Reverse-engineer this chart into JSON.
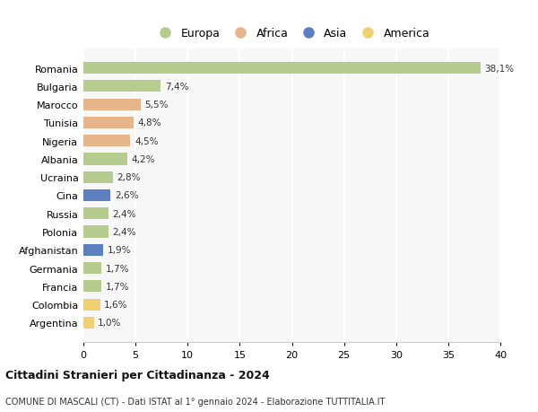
{
  "countries": [
    "Romania",
    "Bulgaria",
    "Marocco",
    "Tunisia",
    "Nigeria",
    "Albania",
    "Ucraina",
    "Cina",
    "Russia",
    "Polonia",
    "Afghanistan",
    "Germania",
    "Francia",
    "Colombia",
    "Argentina"
  ],
  "values": [
    38.1,
    7.4,
    5.5,
    4.8,
    4.5,
    4.2,
    2.8,
    2.6,
    2.4,
    2.4,
    1.9,
    1.7,
    1.7,
    1.6,
    1.0
  ],
  "labels": [
    "38,1%",
    "7,4%",
    "5,5%",
    "4,8%",
    "4,5%",
    "4,2%",
    "2,8%",
    "2,6%",
    "2,4%",
    "2,4%",
    "1,9%",
    "1,7%",
    "1,7%",
    "1,6%",
    "1,0%"
  ],
  "continents": [
    "Europa",
    "Europa",
    "Africa",
    "Africa",
    "Africa",
    "Europa",
    "Europa",
    "Asia",
    "Europa",
    "Europa",
    "Asia",
    "Europa",
    "Europa",
    "America",
    "America"
  ],
  "colors": {
    "Europa": "#b5cc8e",
    "Africa": "#e8b48a",
    "Asia": "#5b7fbf",
    "America": "#f0d070"
  },
  "legend_order": [
    "Europa",
    "Africa",
    "Asia",
    "America"
  ],
  "title": "Cittadini Stranieri per Cittadinanza - 2024",
  "subtitle": "COMUNE DI MASCALI (CT) - Dati ISTAT al 1° gennaio 2024 - Elaborazione TUTTITALIA.IT",
  "xlim": [
    0,
    40
  ],
  "xticks": [
    0,
    5,
    10,
    15,
    20,
    25,
    30,
    35,
    40
  ],
  "background_color": "#ffffff",
  "plot_bg_color": "#f7f7f7",
  "grid_color": "#ffffff",
  "bar_height": 0.65
}
